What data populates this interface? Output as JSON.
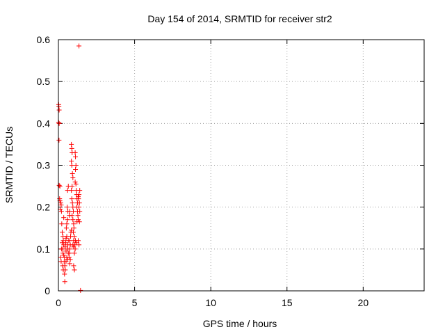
{
  "chart_data": {
    "type": "scatter",
    "title": "Day 154 of 2014, SRMTID for receiver str2",
    "xlabel": "GPS time / hours",
    "ylabel": "SRMTID / TECUs",
    "xlim": [
      0,
      24
    ],
    "ylim": [
      0,
      0.6
    ],
    "x_ticks": [
      0,
      5,
      10,
      15,
      20
    ],
    "x_tick_labels": [
      "0",
      "5",
      "10",
      "15",
      "20"
    ],
    "y_ticks": [
      0,
      0.1,
      0.2,
      0.3,
      0.4,
      0.5,
      0.6
    ],
    "y_tick_labels": [
      "0",
      "0.1",
      "0.2",
      "0.3",
      "0.4",
      "0.5",
      "0.6"
    ],
    "grid": true,
    "marker": "+",
    "series": [
      {
        "name": "str2",
        "color": "#ff0000",
        "points": [
          [
            0.02,
            0.445
          ],
          [
            0.03,
            0.44
          ],
          [
            0.05,
            0.432
          ],
          [
            0.02,
            0.402
          ],
          [
            0.05,
            0.4
          ],
          [
            0.04,
            0.36
          ],
          [
            0.05,
            0.252
          ],
          [
            0.1,
            0.25
          ],
          [
            0.08,
            0.22
          ],
          [
            0.1,
            0.215
          ],
          [
            0.15,
            0.21
          ],
          [
            0.18,
            0.205
          ],
          [
            0.12,
            0.195
          ],
          [
            0.2,
            0.19
          ],
          [
            0.22,
            0.16
          ],
          [
            0.25,
            0.14
          ],
          [
            0.3,
            0.13
          ],
          [
            0.32,
            0.12
          ],
          [
            0.35,
            0.11
          ],
          [
            0.28,
            0.1
          ],
          [
            0.3,
            0.09
          ],
          [
            0.35,
            0.085
          ],
          [
            0.4,
            0.08
          ],
          [
            0.38,
            0.07
          ],
          [
            0.42,
            0.06
          ],
          [
            0.45,
            0.05
          ],
          [
            0.4,
            0.04
          ],
          [
            0.42,
            0.022
          ],
          [
            0.45,
            0.105
          ],
          [
            0.48,
            0.115
          ],
          [
            0.5,
            0.125
          ],
          [
            0.55,
            0.13
          ],
          [
            0.5,
            0.095
          ],
          [
            0.52,
            0.15
          ],
          [
            0.55,
            0.16
          ],
          [
            0.6,
            0.17
          ],
          [
            0.62,
            0.19
          ],
          [
            0.58,
            0.2
          ],
          [
            0.6,
            0.24
          ],
          [
            0.65,
            0.25
          ],
          [
            0.7,
            0.08
          ],
          [
            0.72,
            0.09
          ],
          [
            0.75,
            0.1
          ],
          [
            0.78,
            0.11
          ],
          [
            0.7,
            0.12
          ],
          [
            0.8,
            0.13
          ],
          [
            0.82,
            0.14
          ],
          [
            0.85,
            0.145
          ],
          [
            0.75,
            0.065
          ],
          [
            0.78,
            0.075
          ],
          [
            0.85,
            0.35
          ],
          [
            0.88,
            0.34
          ],
          [
            0.9,
            0.33
          ],
          [
            0.85,
            0.31
          ],
          [
            0.88,
            0.3
          ],
          [
            0.92,
            0.28
          ],
          [
            0.95,
            0.27
          ],
          [
            0.9,
            0.25
          ],
          [
            0.85,
            0.24
          ],
          [
            0.88,
            0.22
          ],
          [
            0.92,
            0.21
          ],
          [
            0.95,
            0.2
          ],
          [
            0.98,
            0.19
          ],
          [
            0.9,
            0.18
          ],
          [
            0.95,
            0.17
          ],
          [
            1.0,
            0.16
          ],
          [
            1.02,
            0.15
          ],
          [
            0.98,
            0.14
          ],
          [
            1.05,
            0.13
          ],
          [
            1.0,
            0.12
          ],
          [
            1.08,
            0.11
          ],
          [
            1.1,
            0.1
          ],
          [
            1.05,
            0.09
          ],
          [
            1.0,
            0.06
          ],
          [
            1.05,
            0.05
          ],
          [
            1.1,
            0.33
          ],
          [
            1.12,
            0.32
          ],
          [
            1.15,
            0.3
          ],
          [
            1.12,
            0.29
          ],
          [
            1.1,
            0.26
          ],
          [
            1.15,
            0.255
          ],
          [
            1.18,
            0.24
          ],
          [
            1.2,
            0.23
          ],
          [
            1.22,
            0.22
          ],
          [
            1.25,
            0.21
          ],
          [
            1.2,
            0.2
          ],
          [
            1.25,
            0.19
          ],
          [
            1.28,
            0.18
          ],
          [
            1.3,
            0.17
          ],
          [
            1.22,
            0.165
          ],
          [
            1.3,
            0.225
          ],
          [
            1.35,
            0.23
          ],
          [
            1.32,
            0.22
          ],
          [
            1.38,
            0.21
          ],
          [
            1.4,
            0.24
          ],
          [
            1.35,
            0.2
          ],
          [
            1.4,
            0.19
          ],
          [
            1.38,
            0.165
          ],
          [
            1.3,
            0.12
          ],
          [
            1.35,
            0.11
          ],
          [
            1.35,
            0.585
          ],
          [
            1.45,
            0.001
          ],
          [
            0.2,
            0.1
          ],
          [
            0.25,
            0.115
          ],
          [
            0.15,
            0.08
          ],
          [
            0.18,
            0.07
          ],
          [
            0.28,
            0.06
          ],
          [
            0.32,
            0.05
          ],
          [
            0.6,
            0.11
          ],
          [
            0.62,
            0.1
          ],
          [
            0.65,
            0.09
          ],
          [
            0.68,
            0.12
          ],
          [
            0.5,
            0.07
          ],
          [
            0.55,
            0.08
          ],
          [
            0.6,
            0.075
          ],
          [
            0.72,
            0.18
          ],
          [
            0.75,
            0.19
          ],
          [
            0.95,
            0.11
          ],
          [
            1.0,
            0.105
          ],
          [
            1.12,
            0.12
          ],
          [
            1.18,
            0.115
          ],
          [
            0.35,
            0.175
          ]
        ]
      }
    ]
  }
}
